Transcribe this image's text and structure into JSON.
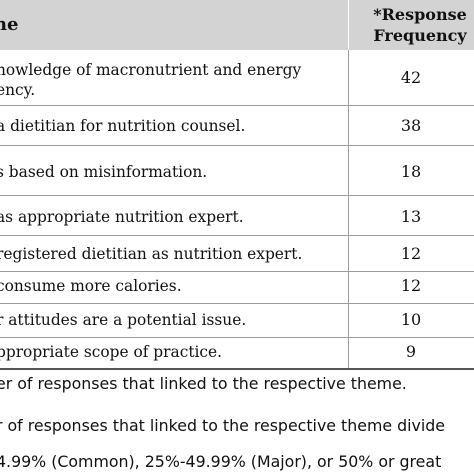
{
  "table": {
    "header": {
      "theme": "me",
      "frequency_line1": "*Response",
      "frequency_line2": "Frequency"
    },
    "rows": [
      {
        "theme_line1": "nowledge of macronutrient and energy",
        "theme_line2": "ency.",
        "frequency": "42"
      },
      {
        "theme_line1": "a dietitian for nutrition counsel.",
        "frequency": "38"
      },
      {
        "theme_line1": "s based on misinformation.",
        "frequency": "18"
      },
      {
        "theme_line1": "as appropriate nutrition expert.",
        "frequency": "13"
      },
      {
        "theme_line1": "registered dietitian as nutrition expert.",
        "frequency": "12"
      },
      {
        "theme_line1": "consume more calories.",
        "frequency": "12"
      },
      {
        "theme_line1": "r attitudes are a potential issue.",
        "frequency": "10"
      },
      {
        "theme_line1": "ppropriate scope of practice.",
        "frequency": "9"
      }
    ]
  },
  "notes": [
    "er of responses that linked to the respective theme.",
    "r of responses that linked to the respective theme divide",
    "4.99% (Common), 25%-49.99% (Major), or 50% or great"
  ],
  "colors": {
    "header_background": "#d3d3d3",
    "row_border": "#9b9b9b",
    "text": "#111111"
  }
}
